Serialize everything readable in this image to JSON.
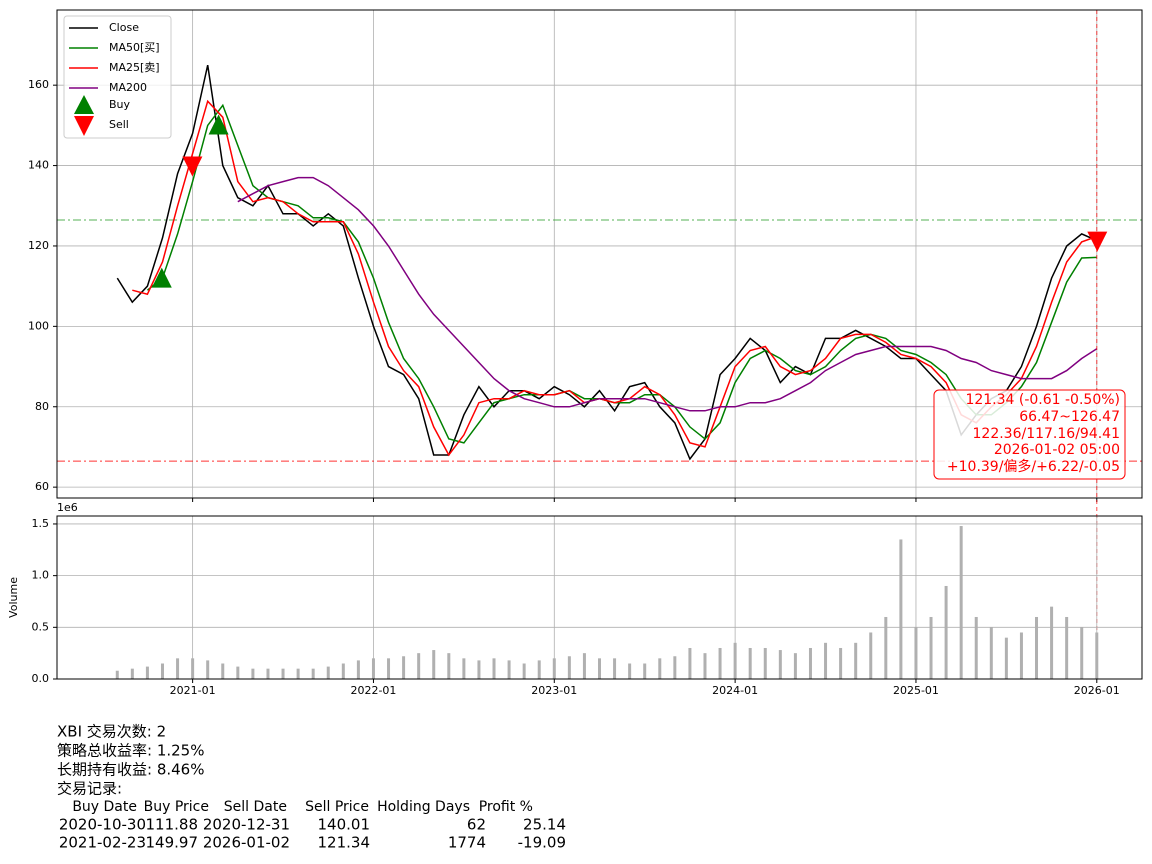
{
  "chart_data": [
    {
      "type": "line",
      "xlim": [
        "2020-04",
        "2026-04"
      ],
      "ylim": [
        57.3,
        178.7
      ],
      "yticks": [
        60,
        80,
        100,
        120,
        140,
        160
      ],
      "grid": true,
      "legend": "upper left",
      "x": [
        "2020-08",
        "2020-09",
        "2020-10",
        "2020-11",
        "2020-12",
        "2021-01",
        "2021-02",
        "2021-03",
        "2021-04",
        "2021-05",
        "2021-06",
        "2021-07",
        "2021-08",
        "2021-09",
        "2021-10",
        "2021-11",
        "2021-12",
        "2022-01",
        "2022-02",
        "2022-03",
        "2022-04",
        "2022-05",
        "2022-06",
        "2022-07",
        "2022-08",
        "2022-09",
        "2022-10",
        "2022-11",
        "2022-12",
        "2023-01",
        "2023-02",
        "2023-03",
        "2023-04",
        "2023-05",
        "2023-06",
        "2023-07",
        "2023-08",
        "2023-09",
        "2023-10",
        "2023-11",
        "2023-12",
        "2024-01",
        "2024-02",
        "2024-03",
        "2024-04",
        "2024-05",
        "2024-06",
        "2024-07",
        "2024-08",
        "2024-09",
        "2024-10",
        "2024-11",
        "2024-12",
        "2025-01",
        "2025-02",
        "2025-03",
        "2025-04",
        "2025-05",
        "2025-06",
        "2025-07",
        "2025-08",
        "2025-09",
        "2025-10",
        "2025-11",
        "2025-12",
        "2026-01"
      ],
      "series": [
        {
          "name": "Close",
          "color": "#000000",
          "values": [
            112,
            106,
            110,
            122,
            138,
            148,
            165,
            140,
            132,
            130,
            135,
            128,
            128,
            125,
            128,
            125,
            112,
            100,
            90,
            88,
            82,
            68,
            68,
            78,
            85,
            80,
            84,
            84,
            82,
            85,
            83,
            80,
            84,
            79,
            85,
            86,
            80,
            76,
            67,
            72,
            88,
            92,
            97,
            94,
            86,
            90,
            88,
            97,
            97,
            99,
            97,
            95,
            92,
            92,
            88,
            84,
            73,
            78,
            82,
            84,
            90,
            100,
            112,
            120,
            123,
            121.34
          ]
        },
        {
          "name": "MA50[买]",
          "color": "#008000",
          "values": [
            null,
            null,
            109,
            112,
            123,
            136,
            150,
            155,
            145,
            135,
            132,
            131,
            130,
            127,
            127,
            126,
            121,
            112,
            101,
            92,
            87,
            80,
            72,
            71,
            76,
            81,
            82,
            83,
            83,
            83,
            84,
            82,
            82,
            81,
            81,
            83,
            83,
            80,
            75,
            72,
            76,
            86,
            92,
            94,
            92,
            89,
            88,
            90,
            94,
            97,
            98,
            97,
            94,
            93,
            91,
            88,
            82,
            78,
            78,
            81,
            85,
            91,
            101,
            111,
            117,
            117.16
          ]
        },
        {
          "name": "MA25[卖]",
          "color": "#ff0000",
          "values": [
            null,
            109,
            108,
            116,
            130,
            143,
            156,
            152,
            136,
            131,
            132,
            131,
            128,
            126,
            126,
            126,
            118,
            106,
            95,
            89,
            85,
            75,
            68,
            73,
            81,
            82,
            82,
            84,
            83,
            83,
            84,
            81,
            82,
            81,
            82,
            85,
            83,
            78,
            71,
            70,
            80,
            90,
            94,
            95,
            90,
            88,
            89,
            92,
            97,
            98,
            98,
            96,
            93,
            92,
            90,
            86,
            78,
            76,
            80,
            83,
            87,
            95,
            106,
            116,
            121,
            122.36
          ]
        },
        {
          "name": "MA200",
          "color": "#800080",
          "values": [
            null,
            null,
            null,
            null,
            null,
            null,
            null,
            null,
            131,
            133,
            135,
            136,
            137,
            137,
            135,
            132,
            129,
            125,
            120,
            114,
            108,
            103,
            99,
            95,
            91,
            87,
            84,
            82,
            81,
            80,
            80,
            81,
            82,
            82,
            82,
            82,
            81,
            80,
            79,
            79,
            80,
            80,
            81,
            81,
            82,
            84,
            86,
            89,
            91,
            93,
            94,
            95,
            95,
            95,
            95,
            94,
            92,
            91,
            89,
            88,
            87,
            87,
            87,
            89,
            92,
            94.41
          ]
        }
      ],
      "markers": {
        "buy": {
          "name": "Buy",
          "color": "#008000"
        },
        "sell": {
          "name": "Sell",
          "color": "#ff0000"
        }
      },
      "hlines": [
        {
          "value": 126.47,
          "color": "#2ca02c"
        },
        {
          "value": 66.47,
          "color": "#ff0000"
        }
      ],
      "annotation": [
        "121.34 (-0.61 -0.50%)",
        "66.47~126.47",
        "122.36/117.16/94.41",
        "2026-01-02 05:00",
        "+10.39/偏多/+6.22/-0.05"
      ]
    },
    {
      "type": "bar",
      "ylabel": "Volume",
      "offset_text": "1e6",
      "xlim": [
        "2020-04",
        "2026-04"
      ],
      "ylim": [
        0,
        1.577
      ],
      "yticks": [
        {
          "value": 0,
          "label": "0.0"
        },
        {
          "value": 0.5,
          "label": "0.5"
        },
        {
          "value": 1,
          "label": "1.0"
        },
        {
          "value": 1.5,
          "label": "1.5"
        }
      ],
      "xticks": [
        "2021-01",
        "2022-01",
        "2023-01",
        "2024-01",
        "2025-01",
        "2026-01"
      ],
      "grid": true,
      "color": "#b0b0b0",
      "x": [
        "2020-08",
        "2020-09",
        "2020-10",
        "2020-11",
        "2020-12",
        "2021-01",
        "2021-02",
        "2021-03",
        "2021-04",
        "2021-05",
        "2021-06",
        "2021-07",
        "2021-08",
        "2021-09",
        "2021-10",
        "2021-11",
        "2021-12",
        "2022-01",
        "2022-02",
        "2022-03",
        "2022-04",
        "2022-05",
        "2022-06",
        "2022-07",
        "2022-08",
        "2022-09",
        "2022-10",
        "2022-11",
        "2022-12",
        "2023-01",
        "2023-02",
        "2023-03",
        "2023-04",
        "2023-05",
        "2023-06",
        "2023-07",
        "2023-08",
        "2023-09",
        "2023-10",
        "2023-11",
        "2023-12",
        "2024-01",
        "2024-02",
        "2024-03",
        "2024-04",
        "2024-05",
        "2024-06",
        "2024-07",
        "2024-08",
        "2024-09",
        "2024-10",
        "2024-11",
        "2024-12",
        "2025-01",
        "2025-02",
        "2025-03",
        "2025-04",
        "2025-05",
        "2025-06",
        "2025-07",
        "2025-08",
        "2025-09",
        "2025-10",
        "2025-11",
        "2025-12",
        "2026-01"
      ],
      "values": [
        0.08,
        0.1,
        0.12,
        0.15,
        0.2,
        0.2,
        0.18,
        0.15,
        0.12,
        0.1,
        0.1,
        0.1,
        0.1,
        0.1,
        0.12,
        0.15,
        0.18,
        0.2,
        0.2,
        0.22,
        0.25,
        0.28,
        0.25,
        0.2,
        0.18,
        0.2,
        0.18,
        0.15,
        0.18,
        0.2,
        0.22,
        0.25,
        0.2,
        0.2,
        0.15,
        0.15,
        0.2,
        0.22,
        0.3,
        0.25,
        0.3,
        0.35,
        0.3,
        0.3,
        0.28,
        0.25,
        0.3,
        0.35,
        0.3,
        0.35,
        0.45,
        0.6,
        1.35,
        0.5,
        0.6,
        0.9,
        1.48,
        0.6,
        0.5,
        0.4,
        0.45,
        0.6,
        0.7,
        0.6,
        0.5,
        0.45
      ]
    }
  ],
  "report": {
    "lines": [
      "XBI 交易次数: 2",
      "策略总收益率: 1.25%",
      "长期持有收益: 8.46%",
      "交易记录:"
    ],
    "columns": [
      "Buy Date",
      "Buy Price",
      "Sell Date",
      "Sell Price",
      "Holding Days",
      "Profit %"
    ],
    "trades": [
      [
        "2020-10-30",
        111.88,
        "2020-12-31",
        140.01,
        62,
        25.14
      ],
      [
        "2021-02-23",
        149.97,
        "2026-01-02",
        121.34,
        1774,
        -19.09
      ]
    ]
  }
}
